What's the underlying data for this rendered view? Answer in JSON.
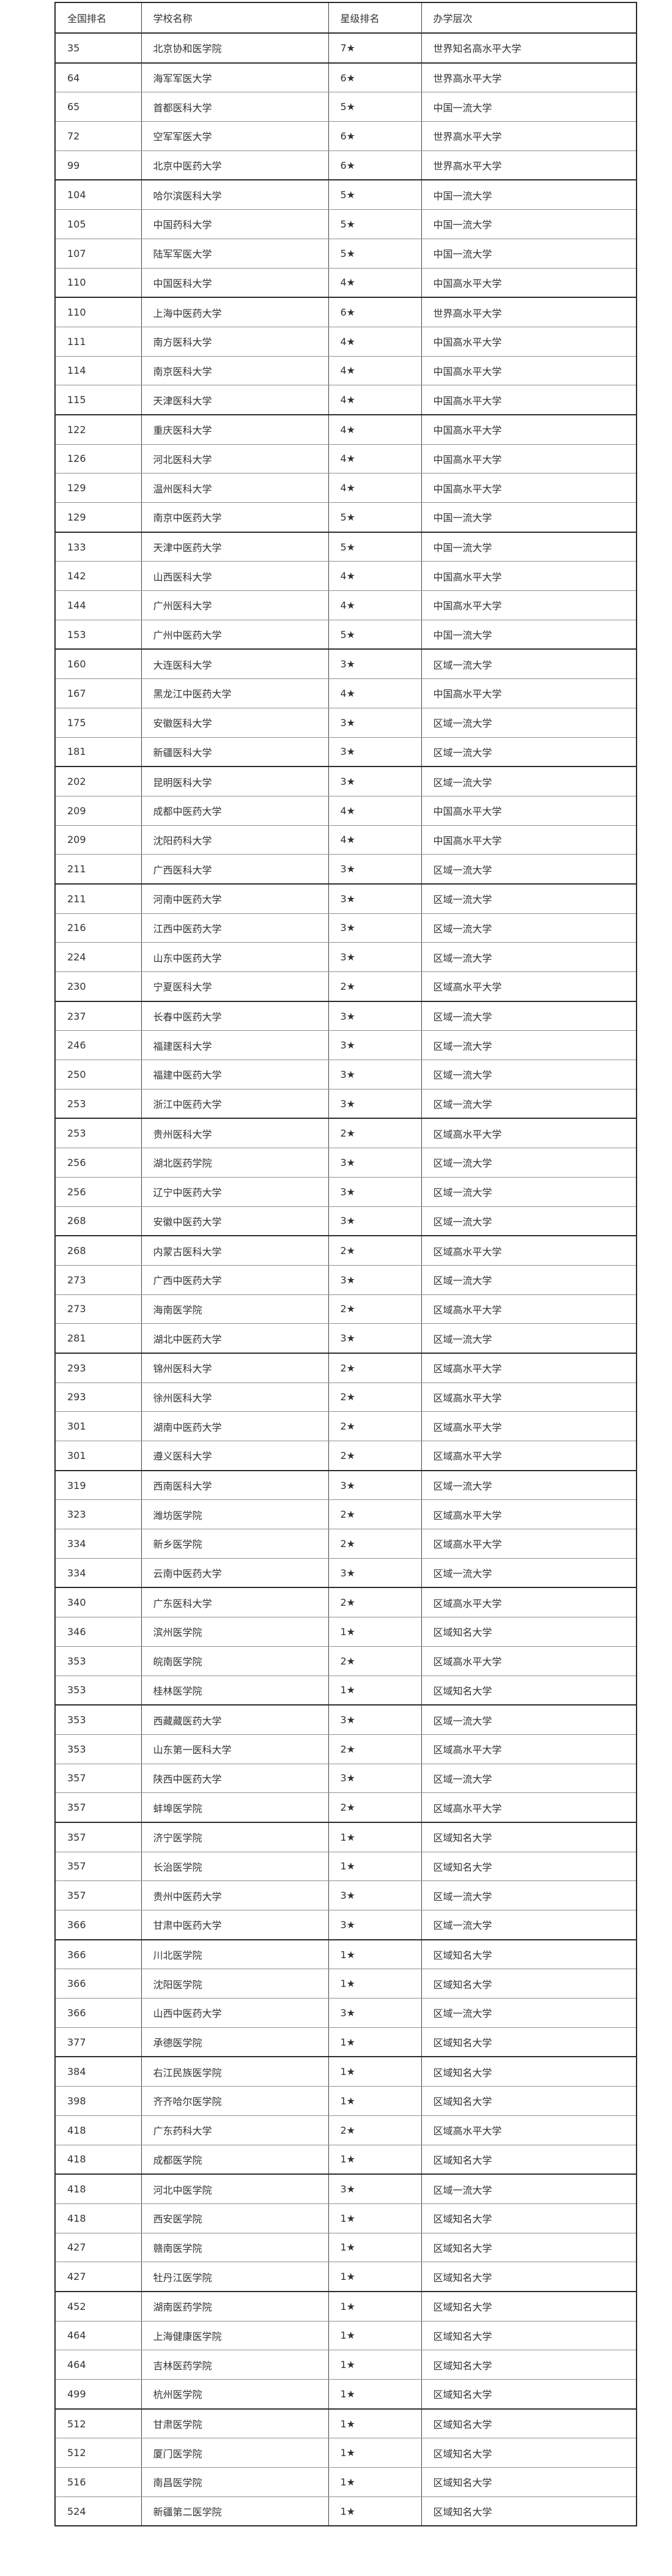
{
  "table": {
    "columns": [
      "全国排名",
      "学校名称",
      "星级排名",
      "办学层次"
    ],
    "rows": [
      {
        "rank": "35",
        "name": "北京协和医学院",
        "star": "7★",
        "level": "世界知名高水平大学"
      },
      {
        "rank": "64",
        "name": "海军军医大学",
        "star": "6★",
        "level": "世界高水平大学"
      },
      {
        "rank": "65",
        "name": "首都医科大学",
        "star": "5★",
        "level": "中国一流大学"
      },
      {
        "rank": "72",
        "name": "空军军医大学",
        "star": "6★",
        "level": "世界高水平大学"
      },
      {
        "rank": "99",
        "name": "北京中医药大学",
        "star": "6★",
        "level": "世界高水平大学"
      },
      {
        "rank": "104",
        "name": "哈尔滨医科大学",
        "star": "5★",
        "level": "中国一流大学"
      },
      {
        "rank": "105",
        "name": "中国药科大学",
        "star": "5★",
        "level": "中国一流大学"
      },
      {
        "rank": "107",
        "name": "陆军军医大学",
        "star": "5★",
        "level": "中国一流大学"
      },
      {
        "rank": "110",
        "name": "中国医科大学",
        "star": "4★",
        "level": "中国高水平大学"
      },
      {
        "rank": "110",
        "name": "上海中医药大学",
        "star": "6★",
        "level": "世界高水平大学"
      },
      {
        "rank": "111",
        "name": "南方医科大学",
        "star": "4★",
        "level": "中国高水平大学"
      },
      {
        "rank": "114",
        "name": "南京医科大学",
        "star": "4★",
        "level": "中国高水平大学"
      },
      {
        "rank": "115",
        "name": "天津医科大学",
        "star": "4★",
        "level": "中国高水平大学"
      },
      {
        "rank": "122",
        "name": "重庆医科大学",
        "star": "4★",
        "level": "中国高水平大学"
      },
      {
        "rank": "126",
        "name": "河北医科大学",
        "star": "4★",
        "level": "中国高水平大学"
      },
      {
        "rank": "129",
        "name": "温州医科大学",
        "star": "4★",
        "level": "中国高水平大学"
      },
      {
        "rank": "129",
        "name": "南京中医药大学",
        "star": "5★",
        "level": "中国一流大学"
      },
      {
        "rank": "133",
        "name": "天津中医药大学",
        "star": "5★",
        "level": "中国一流大学"
      },
      {
        "rank": "142",
        "name": "山西医科大学",
        "star": "4★",
        "level": "中国高水平大学"
      },
      {
        "rank": "144",
        "name": "广州医科大学",
        "star": "4★",
        "level": "中国高水平大学"
      },
      {
        "rank": "153",
        "name": "广州中医药大学",
        "star": "5★",
        "level": "中国一流大学"
      },
      {
        "rank": "160",
        "name": "大连医科大学",
        "star": "3★",
        "level": "区域一流大学"
      },
      {
        "rank": "167",
        "name": "黑龙江中医药大学",
        "star": "4★",
        "level": "中国高水平大学"
      },
      {
        "rank": "175",
        "name": "安徽医科大学",
        "star": "3★",
        "level": "区域一流大学"
      },
      {
        "rank": "181",
        "name": "新疆医科大学",
        "star": "3★",
        "level": "区域一流大学"
      },
      {
        "rank": "202",
        "name": "昆明医科大学",
        "star": "3★",
        "level": "区域一流大学"
      },
      {
        "rank": "209",
        "name": "成都中医药大学",
        "star": "4★",
        "level": "中国高水平大学"
      },
      {
        "rank": "209",
        "name": "沈阳药科大学",
        "star": "4★",
        "level": "中国高水平大学"
      },
      {
        "rank": "211",
        "name": "广西医科大学",
        "star": "3★",
        "level": "区域一流大学"
      },
      {
        "rank": "211",
        "name": "河南中医药大学",
        "star": "3★",
        "level": "区域一流大学"
      },
      {
        "rank": "216",
        "name": "江西中医药大学",
        "star": "3★",
        "level": "区域一流大学"
      },
      {
        "rank": "224",
        "name": "山东中医药大学",
        "star": "3★",
        "level": "区域一流大学"
      },
      {
        "rank": "230",
        "name": "宁夏医科大学",
        "star": "2★",
        "level": "区域高水平大学"
      },
      {
        "rank": "237",
        "name": "长春中医药大学",
        "star": "3★",
        "level": "区域一流大学"
      },
      {
        "rank": "246",
        "name": "福建医科大学",
        "star": "3★",
        "level": "区域一流大学"
      },
      {
        "rank": "250",
        "name": "福建中医药大学",
        "star": "3★",
        "level": "区域一流大学"
      },
      {
        "rank": "253",
        "name": "浙江中医药大学",
        "star": "3★",
        "level": "区域一流大学"
      },
      {
        "rank": "253",
        "name": "贵州医科大学",
        "star": "2★",
        "level": "区域高水平大学"
      },
      {
        "rank": "256",
        "name": "湖北医药学院",
        "star": "3★",
        "level": "区域一流大学"
      },
      {
        "rank": "256",
        "name": "辽宁中医药大学",
        "star": "3★",
        "level": "区域一流大学"
      },
      {
        "rank": "268",
        "name": "安徽中医药大学",
        "star": "3★",
        "level": "区域一流大学"
      },
      {
        "rank": "268",
        "name": "内蒙古医科大学",
        "star": "2★",
        "level": "区域高水平大学"
      },
      {
        "rank": "273",
        "name": "广西中医药大学",
        "star": "3★",
        "level": "区域一流大学"
      },
      {
        "rank": "273",
        "name": "海南医学院",
        "star": "2★",
        "level": "区域高水平大学"
      },
      {
        "rank": "281",
        "name": "湖北中医药大学",
        "star": "3★",
        "level": "区域一流大学"
      },
      {
        "rank": "293",
        "name": "锦州医科大学",
        "star": "2★",
        "level": "区域高水平大学"
      },
      {
        "rank": "293",
        "name": "徐州医科大学",
        "star": "2★",
        "level": "区域高水平大学"
      },
      {
        "rank": "301",
        "name": "湖南中医药大学",
        "star": "2★",
        "level": "区域高水平大学"
      },
      {
        "rank": "301",
        "name": "遵义医科大学",
        "star": "2★",
        "level": "区域高水平大学"
      },
      {
        "rank": "319",
        "name": "西南医科大学",
        "star": "3★",
        "level": "区域一流大学"
      },
      {
        "rank": "323",
        "name": "潍坊医学院",
        "star": "2★",
        "level": "区域高水平大学"
      },
      {
        "rank": "334",
        "name": "新乡医学院",
        "star": "2★",
        "level": "区域高水平大学"
      },
      {
        "rank": "334",
        "name": "云南中医药大学",
        "star": "3★",
        "level": "区域一流大学"
      },
      {
        "rank": "340",
        "name": "广东医科大学",
        "star": "2★",
        "level": "区域高水平大学"
      },
      {
        "rank": "346",
        "name": "滨州医学院",
        "star": "1★",
        "level": "区域知名大学"
      },
      {
        "rank": "353",
        "name": "皖南医学院",
        "star": "2★",
        "level": "区域高水平大学"
      },
      {
        "rank": "353",
        "name": "桂林医学院",
        "star": "1★",
        "level": "区域知名大学"
      },
      {
        "rank": "353",
        "name": "西藏藏医药大学",
        "star": "3★",
        "level": "区域一流大学"
      },
      {
        "rank": "353",
        "name": "山东第一医科大学",
        "star": "2★",
        "level": "区域高水平大学"
      },
      {
        "rank": "357",
        "name": "陕西中医药大学",
        "star": "3★",
        "level": "区域一流大学"
      },
      {
        "rank": "357",
        "name": "蚌埠医学院",
        "star": "2★",
        "level": "区域高水平大学"
      },
      {
        "rank": "357",
        "name": "济宁医学院",
        "star": "1★",
        "level": "区域知名大学"
      },
      {
        "rank": "357",
        "name": "长治医学院",
        "star": "1★",
        "level": "区域知名大学"
      },
      {
        "rank": "357",
        "name": "贵州中医药大学",
        "star": "3★",
        "level": "区域一流大学"
      },
      {
        "rank": "366",
        "name": "甘肃中医药大学",
        "star": "3★",
        "level": "区域一流大学"
      },
      {
        "rank": "366",
        "name": "川北医学院",
        "star": "1★",
        "level": "区域知名大学"
      },
      {
        "rank": "366",
        "name": "沈阳医学院",
        "star": "1★",
        "level": "区域知名大学"
      },
      {
        "rank": "366",
        "name": "山西中医药大学",
        "star": "3★",
        "level": "区域一流大学"
      },
      {
        "rank": "377",
        "name": "承德医学院",
        "star": "1★",
        "level": "区域知名大学"
      },
      {
        "rank": "384",
        "name": "右江民族医学院",
        "star": "1★",
        "level": "区域知名大学"
      },
      {
        "rank": "398",
        "name": "齐齐哈尔医学院",
        "star": "1★",
        "level": "区域知名大学"
      },
      {
        "rank": "418",
        "name": "广东药科大学",
        "star": "2★",
        "level": "区域高水平大学"
      },
      {
        "rank": "418",
        "name": "成都医学院",
        "star": "1★",
        "level": "区域知名大学"
      },
      {
        "rank": "418",
        "name": "河北中医学院",
        "star": "3★",
        "level": "区域一流大学"
      },
      {
        "rank": "418",
        "name": "西安医学院",
        "star": "1★",
        "level": "区域知名大学"
      },
      {
        "rank": "427",
        "name": "赣南医学院",
        "star": "1★",
        "level": "区域知名大学"
      },
      {
        "rank": "427",
        "name": "牡丹江医学院",
        "star": "1★",
        "level": "区域知名大学"
      },
      {
        "rank": "452",
        "name": "湖南医药学院",
        "star": "1★",
        "level": "区域知名大学"
      },
      {
        "rank": "464",
        "name": "上海健康医学院",
        "star": "1★",
        "level": "区域知名大学"
      },
      {
        "rank": "464",
        "name": "吉林医药学院",
        "star": "1★",
        "level": "区域知名大学"
      },
      {
        "rank": "499",
        "name": "杭州医学院",
        "star": "1★",
        "level": "区域知名大学"
      },
      {
        "rank": "512",
        "name": "甘肃医学院",
        "star": "1★",
        "level": "区域知名大学"
      },
      {
        "rank": "512",
        "name": "厦门医学院",
        "star": "1★",
        "level": "区域知名大学"
      },
      {
        "rank": "516",
        "name": "南昌医学院",
        "star": "1★",
        "level": "区域知名大学"
      },
      {
        "rank": "524",
        "name": "新疆第二医学院",
        "star": "1★",
        "level": "区域知名大学"
      }
    ]
  },
  "colors": {
    "text": "#333333",
    "border_vertical": "#404040",
    "border_thin": "#909090",
    "border_thick": "#2b2b2b",
    "background": "#ffffff"
  }
}
